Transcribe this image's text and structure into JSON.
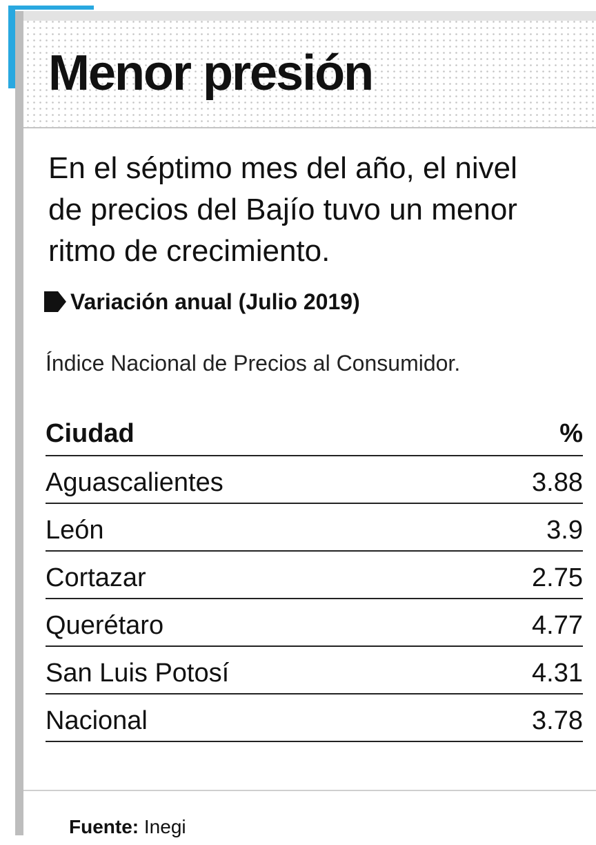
{
  "header": {
    "title": "Menor presión"
  },
  "description": [
    "En el séptimo mes del año, el nivel",
    "de precios del Bajío tuvo un menor",
    "ritmo de crecimiento."
  ],
  "subtitle": "Variación anual (Julio 2019)",
  "note": "Índice Nacional de Precios al Consumidor.",
  "table": {
    "columns": [
      "Ciudad",
      "%"
    ],
    "rows": [
      [
        "Aguascalientes",
        3.88
      ],
      [
        "León",
        3.9
      ],
      [
        "Cortazar",
        2.75
      ],
      [
        "Querétaro",
        4.77
      ],
      [
        "San Luis Potosí",
        4.31
      ],
      [
        "Nacional",
        3.78
      ]
    ]
  },
  "source": {
    "label": "Fuente:",
    "text": "Inegi"
  }
}
